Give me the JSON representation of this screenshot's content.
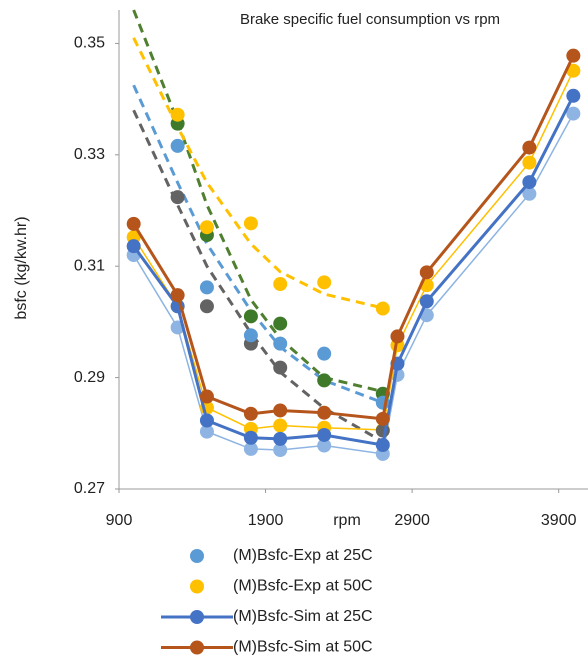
{
  "chart_data": {
    "type": "line",
    "title": "Brake specific fuel consumption vs rpm",
    "x_label": "rpm",
    "y_label": "bsfc (kg/kw.hr)",
    "xlim": [
      900,
      4100
    ],
    "xticks": [
      900,
      1900,
      2900,
      3900
    ],
    "ylim": [
      0.27,
      0.356
    ],
    "yticks": [
      0.27,
      0.29,
      0.31,
      0.33,
      0.35
    ],
    "grid": false,
    "legend": "bottom",
    "series": [
      {
        "color": "#4f7f2f",
        "style": "dashed",
        "x": [
          1000,
          1300,
          1500,
          1800,
          2000,
          2300,
          2700
        ],
        "values": [
          0.356,
          0.336,
          0.321,
          0.304,
          0.297,
          0.29,
          0.2875
        ]
      },
      {
        "color": "#ffc000",
        "style": "dashed",
        "x": [
          1000,
          1300,
          1500,
          1800,
          2000,
          2300,
          2700
        ],
        "values": [
          0.351,
          0.335,
          0.325,
          0.314,
          0.309,
          0.305,
          0.3025
        ]
      },
      {
        "color": "#5b9bd5",
        "style": "dashed",
        "x": [
          1000,
          1300,
          1500,
          1800,
          2000,
          2300,
          2700
        ],
        "values": [
          0.3425,
          0.325,
          0.314,
          0.302,
          0.2955,
          0.2895,
          0.2855
        ]
      },
      {
        "color": "#636363",
        "style": "dashed",
        "x": [
          1000,
          1300,
          1500,
          1800,
          2000,
          2300,
          2700
        ],
        "values": [
          0.338,
          0.321,
          0.31,
          0.298,
          0.291,
          0.2845,
          0.2785
        ]
      },
      {
        "color": "#8db4e2",
        "style": "line",
        "width": 1.5,
        "x": [
          1000,
          1300,
          1500,
          1800,
          2000,
          2300,
          2700,
          2800,
          3000,
          3700,
          4000
        ],
        "values": [
          0.312,
          0.299,
          0.2803,
          0.2772,
          0.277,
          0.2778,
          0.2763,
          0.2905,
          0.3012,
          0.323,
          0.3374
        ]
      },
      {
        "color": "#ffc000",
        "style": "line",
        "width": 1.5,
        "x": [
          1000,
          1300,
          1500,
          1800,
          2000,
          2300,
          2700,
          2800,
          3000,
          3700,
          4000
        ],
        "values": [
          0.3152,
          0.3028,
          0.2846,
          0.2808,
          0.2814,
          0.281,
          0.2806,
          0.2958,
          0.3066,
          0.3286,
          0.3451
        ]
      },
      {
        "color": "#636363",
        "style": "markers",
        "x": [
          1300,
          1500,
          1800,
          2000,
          2700
        ],
        "values": [
          0.3224,
          0.3028,
          0.2961,
          0.2918,
          0.2805
        ]
      },
      {
        "color": "#3e7a2a",
        "style": "markers",
        "x": [
          1300,
          1500,
          1800,
          2000,
          2300,
          2700
        ],
        "values": [
          0.3356,
          0.3156,
          0.301,
          0.2997,
          0.2895,
          0.2871
        ]
      },
      {
        "name": "(M)Bsfc-Exp at 25C",
        "color": "#5b9bd5",
        "style": "markers",
        "x": [
          1300,
          1500,
          1800,
          2000,
          2300,
          2700
        ],
        "values": [
          0.3316,
          0.3062,
          0.2976,
          0.2961,
          0.2943,
          0.2855
        ]
      },
      {
        "name": "(M)Bsfc-Exp at 50C",
        "color": "#ffc000",
        "style": "markers",
        "x": [
          1300,
          1500,
          1800,
          2000,
          2300,
          2700
        ],
        "values": [
          0.3372,
          0.317,
          0.3177,
          0.3068,
          0.3071,
          0.3024
        ]
      },
      {
        "name": "(M)Bsfc-Sim at 25C",
        "color": "#4472c4",
        "style": "line",
        "width": 3,
        "x": [
          1000,
          1300,
          1500,
          1800,
          2000,
          2300,
          2700,
          2800,
          3000,
          3700,
          4000
        ],
        "values": [
          0.3136,
          0.3028,
          0.2823,
          0.2792,
          0.279,
          0.2797,
          0.2779,
          0.2925,
          0.3037,
          0.3251,
          0.3406
        ]
      },
      {
        "name": "(M)Bsfc-Sim at 50C",
        "color": "#b5551b",
        "style": "line",
        "width": 3,
        "x": [
          1000,
          1300,
          1500,
          1800,
          2000,
          2300,
          2700,
          2800,
          3000,
          3700,
          4000
        ],
        "values": [
          0.3176,
          0.3048,
          0.2866,
          0.2835,
          0.2841,
          0.2837,
          0.2826,
          0.2974,
          0.3089,
          0.3313,
          0.3478
        ]
      }
    ]
  }
}
